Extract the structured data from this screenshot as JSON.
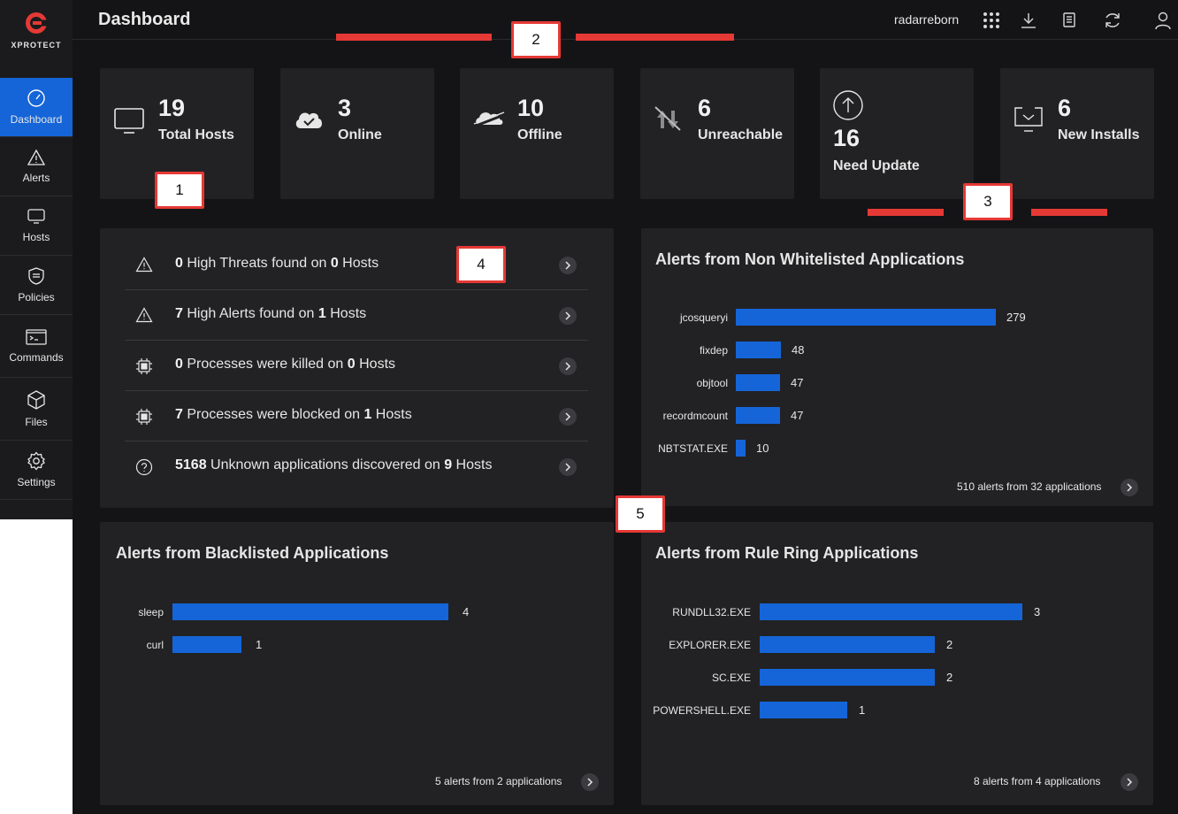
{
  "app": {
    "brand": "XPROTECT"
  },
  "sidebar": {
    "items": [
      {
        "label": "Dashboard",
        "icon": "gauge-icon"
      },
      {
        "label": "Alerts",
        "icon": "warning-icon"
      },
      {
        "label": "Hosts",
        "icon": "monitor-icon"
      },
      {
        "label": "Policies",
        "icon": "shield-icon"
      },
      {
        "label": "Commands",
        "icon": "terminal-icon"
      },
      {
        "label": "Files",
        "icon": "cube-icon"
      },
      {
        "label": "Settings",
        "icon": "gear-icon"
      }
    ]
  },
  "header": {
    "title": "Dashboard",
    "username": "radarreborn",
    "icons": [
      "apps-grid-icon",
      "download-icon",
      "document-icon",
      "refresh-icon",
      "user-icon"
    ]
  },
  "stats": [
    {
      "value": "19",
      "label": "Total Hosts",
      "icon": "monitor-icon"
    },
    {
      "value": "3",
      "label": "Online",
      "icon": "cloud-check-icon"
    },
    {
      "value": "10",
      "label": "Offline",
      "icon": "cloud-off-icon"
    },
    {
      "value": "6",
      "label": "Unreachable",
      "icon": "transfer-off-icon"
    },
    {
      "value": "16",
      "label": "Need Update",
      "icon": "upload-circle-icon"
    },
    {
      "value": "6",
      "label": "New Installs",
      "icon": "install-icon"
    }
  ],
  "summary": {
    "rows": [
      {
        "n1": "0",
        "t1": " High Threats found on ",
        "n2": "0",
        "t2": " Hosts",
        "icon": "warning-icon"
      },
      {
        "n1": "7",
        "t1": " High Alerts found on ",
        "n2": "1",
        "t2": " Hosts",
        "icon": "warning-icon"
      },
      {
        "n1": "0",
        "t1": " Processes were killed on ",
        "n2": "0",
        "t2": " Hosts",
        "icon": "chip-icon"
      },
      {
        "n1": "7",
        "t1": " Processes were blocked on ",
        "n2": "1",
        "t2": " Hosts",
        "icon": "chip-icon"
      },
      {
        "n1": "5168",
        "t1": " Unknown applications discovered on ",
        "n2": "9",
        "t2": " Hosts",
        "icon": "question-icon"
      }
    ]
  },
  "chart_data": [
    {
      "type": "bar",
      "orientation": "horizontal",
      "title": "Alerts from Non Whitelisted Applications",
      "categories": [
        "jcosqueryi",
        "fixdep",
        "objtool",
        "recordmcount",
        "NBTSTAT.EXE"
      ],
      "values": [
        279,
        48,
        47,
        47,
        10
      ],
      "footer": "510 alerts from 32 applications",
      "color": "#1565d8"
    },
    {
      "type": "bar",
      "orientation": "horizontal",
      "title": "Alerts from Blacklisted Applications",
      "categories": [
        "sleep",
        "curl"
      ],
      "values": [
        4,
        1
      ],
      "footer": "5 alerts from 2 applications",
      "color": "#1565d8"
    },
    {
      "type": "bar",
      "orientation": "horizontal",
      "title": "Alerts from Rule Ring Applications",
      "categories": [
        "RUNDLL32.EXE",
        "EXPLORER.EXE",
        "SC.EXE",
        "POWERSHELL.EXE"
      ],
      "values": [
        3,
        2,
        2,
        1
      ],
      "footer": "8 alerts from 4 applications",
      "color": "#1565d8"
    }
  ],
  "callouts": [
    "1",
    "2",
    "3",
    "4",
    "5"
  ],
  "colors": {
    "accent": "#1565d8",
    "callout": "#e53935",
    "panel": "#222224",
    "background": "#141416"
  }
}
